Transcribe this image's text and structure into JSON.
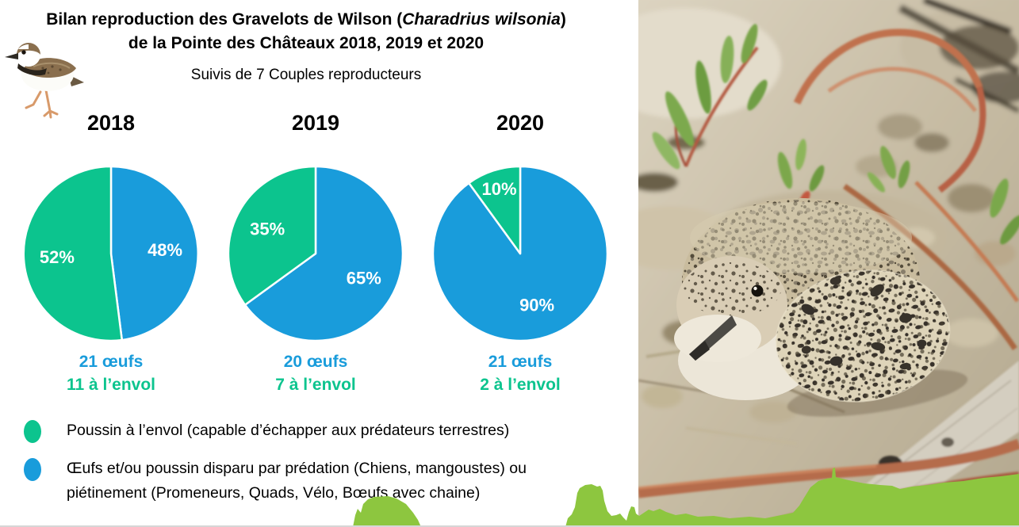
{
  "header": {
    "title_line1_prefix": "Bilan reproduction des Gravelots de Wilson (",
    "title_species_italic": "Charadrius wilsonia",
    "title_line1_suffix": ")",
    "title_line2": "de la Pointe des Châteaux 2018, 2019 et 2020",
    "subtitle": "Suivis de 7 Couples reproducteurs"
  },
  "colors": {
    "pie_fledged_green": "#0cc48e",
    "pie_lost_blue": "#199cdb",
    "overlay_green": "#8dc63f"
  },
  "chart_data": [
    {
      "type": "pie",
      "title": "2018",
      "start_angle_deg": 0,
      "direction": "clockwise",
      "labels_position": "inside",
      "slices": [
        {
          "label": "Œufs et/ou poussin disparu",
          "value": 48,
          "display": "48%",
          "color": "#199cdb"
        },
        {
          "label": "Poussin à l’envol",
          "value": 52,
          "display": "52%",
          "color": "#0cc48e"
        }
      ],
      "caption_eggs": "21 œufs",
      "caption_fledged": "11 à l’envol"
    },
    {
      "type": "pie",
      "title": "2019",
      "start_angle_deg": 0,
      "direction": "clockwise",
      "labels_position": "inside",
      "slices": [
        {
          "label": "Œufs et/ou poussin disparu",
          "value": 65,
          "display": "65%",
          "color": "#199cdb"
        },
        {
          "label": "Poussin à l’envol",
          "value": 35,
          "display": "35%",
          "color": "#0cc48e"
        }
      ],
      "caption_eggs": "20 œufs",
      "caption_fledged": "7 à l’envol"
    },
    {
      "type": "pie",
      "title": "2020",
      "start_angle_deg": 0,
      "direction": "clockwise",
      "labels_position": "inside",
      "slices": [
        {
          "label": "Œufs et/ou poussin disparu",
          "value": 90,
          "display": "90%",
          "color": "#199cdb"
        },
        {
          "label": "Poussin à l’envol",
          "value": 10,
          "display": "10%",
          "color": "#0cc48e"
        }
      ],
      "caption_eggs": "21 œufs",
      "caption_fledged": "2 à l’envol"
    }
  ],
  "legend": [
    {
      "color": "#0cc48e",
      "text": "Poussin à l’envol (capable d’échapper aux prédateurs terrestres)"
    },
    {
      "color": "#199cdb",
      "text": "Œufs et/ou poussin disparu par prédation (Chiens, mangoustes) ou piétinement (Promeneurs, Quads, Vélo, Bœufs avec chaine)"
    }
  ]
}
